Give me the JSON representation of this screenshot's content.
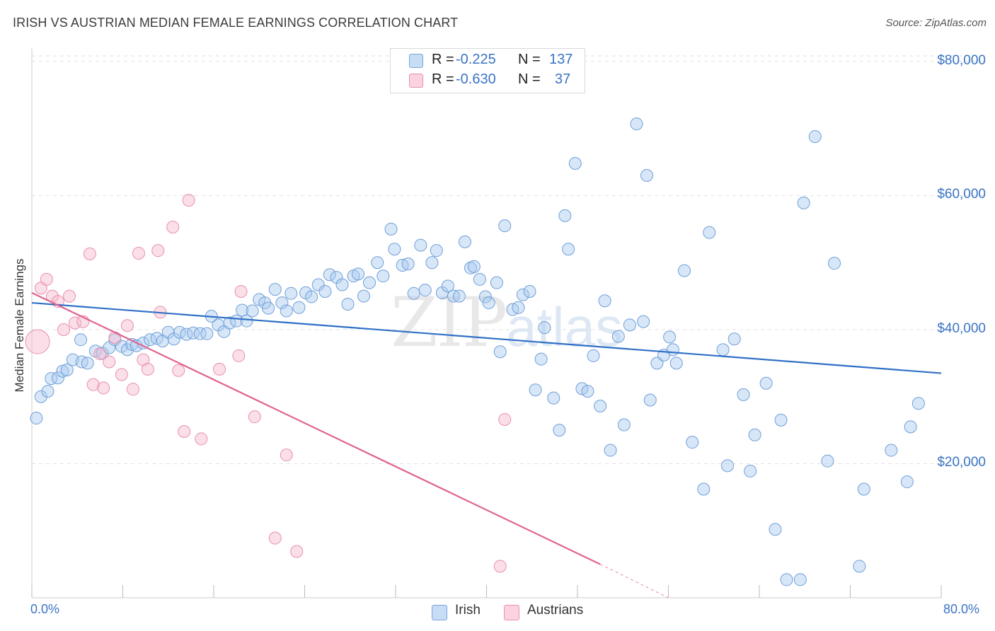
{
  "header": {
    "title": "IRISH VS AUSTRIAN MEDIAN FEMALE EARNINGS CORRELATION CHART",
    "source": "Source: ZipAtlas.com"
  },
  "watermark": {
    "zip": "ZIP",
    "atlas": "atlas"
  },
  "legend": {
    "rows": [
      {
        "r_label": "R =",
        "r_value": "-0.225",
        "n_label": "N =",
        "n_value": "137",
        "color": "#a9c9ef"
      },
      {
        "r_label": "R =",
        "r_value": "-0.630",
        "n_label": "N =",
        "n_value": "37",
        "color": "#f7b8cb"
      }
    ]
  },
  "bottom_legend": [
    {
      "label": "Irish",
      "color": "#a9c9ef"
    },
    {
      "label": "Austrians",
      "color": "#f7b8cb"
    }
  ],
  "chart_data": {
    "type": "scatter",
    "title": "IRISH VS AUSTRIAN MEDIAN FEMALE EARNINGS CORRELATION CHART",
    "xlabel": "",
    "ylabel": "Median Female Earnings",
    "xlim": [
      0,
      80
    ],
    "ylim": [
      0,
      82000
    ],
    "x_tick_labels": [
      "0.0%",
      "80.0%"
    ],
    "y_tick_labels": [
      "$20,000",
      "$40,000",
      "$60,000",
      "$80,000"
    ],
    "y_ticks": [
      20000,
      40000,
      60000,
      80000
    ],
    "grid": "horizontal dashed",
    "legend_placement": "top-center",
    "colors": {
      "irish": "#3a74c4",
      "austrians": "#e0648f"
    },
    "series": [
      {
        "name": "Irish",
        "color": "#3a74c4",
        "trend": {
          "x": [
            0,
            80
          ],
          "y": [
            44000,
            33500
          ]
        },
        "points": [
          [
            0.4,
            26800
          ],
          [
            0.8,
            30000
          ],
          [
            1.4,
            30800
          ],
          [
            1.7,
            32700
          ],
          [
            2.3,
            32800
          ],
          [
            2.7,
            33800
          ],
          [
            3.1,
            34000
          ],
          [
            3.6,
            35500
          ],
          [
            4.4,
            35200
          ],
          [
            4.9,
            35000
          ],
          [
            4.3,
            38500
          ],
          [
            5.6,
            36800
          ],
          [
            6.2,
            36500
          ],
          [
            6.8,
            37300
          ],
          [
            7.3,
            38500
          ],
          [
            7.9,
            37500
          ],
          [
            8.4,
            37000
          ],
          [
            8.8,
            37800
          ],
          [
            9.2,
            37600
          ],
          [
            9.8,
            38000
          ],
          [
            10.4,
            38500
          ],
          [
            11.0,
            38700
          ],
          [
            11.5,
            38300
          ],
          [
            12.0,
            39600
          ],
          [
            12.5,
            38600
          ],
          [
            13.0,
            39600
          ],
          [
            13.6,
            39300
          ],
          [
            14.2,
            39500
          ],
          [
            14.8,
            39400
          ],
          [
            15.4,
            39400
          ],
          [
            15.8,
            42000
          ],
          [
            16.4,
            40700
          ],
          [
            16.9,
            39700
          ],
          [
            17.4,
            41000
          ],
          [
            18.0,
            41300
          ],
          [
            18.5,
            42900
          ],
          [
            18.9,
            41300
          ],
          [
            19.4,
            42800
          ],
          [
            20.0,
            44500
          ],
          [
            20.5,
            44000
          ],
          [
            20.8,
            43200
          ],
          [
            21.4,
            46000
          ],
          [
            22.0,
            44000
          ],
          [
            22.4,
            42800
          ],
          [
            22.8,
            45400
          ],
          [
            23.5,
            43300
          ],
          [
            24.1,
            45500
          ],
          [
            24.6,
            44900
          ],
          [
            25.2,
            46700
          ],
          [
            25.8,
            45700
          ],
          [
            26.2,
            48200
          ],
          [
            26.8,
            47800
          ],
          [
            27.3,
            46700
          ],
          [
            27.8,
            43800
          ],
          [
            28.3,
            48000
          ],
          [
            28.7,
            48300
          ],
          [
            29.2,
            45000
          ],
          [
            29.7,
            47000
          ],
          [
            30.4,
            50000
          ],
          [
            30.9,
            48000
          ],
          [
            31.6,
            55000
          ],
          [
            31.9,
            52000
          ],
          [
            32.6,
            49600
          ],
          [
            33.1,
            49800
          ],
          [
            33.6,
            45400
          ],
          [
            34.2,
            52600
          ],
          [
            34.6,
            45900
          ],
          [
            35.2,
            50000
          ],
          [
            35.6,
            51800
          ],
          [
            36.1,
            45500
          ],
          [
            36.6,
            46500
          ],
          [
            37.1,
            45000
          ],
          [
            37.6,
            45000
          ],
          [
            38.1,
            53100
          ],
          [
            38.6,
            49200
          ],
          [
            38.9,
            49400
          ],
          [
            39.4,
            47500
          ],
          [
            39.9,
            44900
          ],
          [
            40.2,
            44000
          ],
          [
            40.9,
            47000
          ],
          [
            41.2,
            36700
          ],
          [
            41.6,
            55500
          ],
          [
            42.3,
            43000
          ],
          [
            42.8,
            43300
          ],
          [
            43.2,
            45200
          ],
          [
            43.8,
            45700
          ],
          [
            45.1,
            40300
          ],
          [
            44.8,
            35600
          ],
          [
            44.3,
            31000
          ],
          [
            45.9,
            29800
          ],
          [
            46.4,
            25000
          ],
          [
            46.9,
            57000
          ],
          [
            47.2,
            52000
          ],
          [
            47.8,
            64800
          ],
          [
            48.4,
            31200
          ],
          [
            48.9,
            30800
          ],
          [
            49.4,
            36100
          ],
          [
            50.0,
            28600
          ],
          [
            50.4,
            44300
          ],
          [
            50.9,
            22000
          ],
          [
            51.6,
            39000
          ],
          [
            52.1,
            25800
          ],
          [
            52.6,
            40700
          ],
          [
            53.2,
            70700
          ],
          [
            53.8,
            41200
          ],
          [
            54.1,
            63000
          ],
          [
            54.4,
            29500
          ],
          [
            55.0,
            35000
          ],
          [
            55.6,
            36200
          ],
          [
            56.1,
            38900
          ],
          [
            56.4,
            37000
          ],
          [
            56.7,
            35000
          ],
          [
            57.4,
            48800
          ],
          [
            58.1,
            23200
          ],
          [
            59.1,
            16200
          ],
          [
            59.6,
            54500
          ],
          [
            60.8,
            37000
          ],
          [
            61.2,
            19700
          ],
          [
            61.8,
            38600
          ],
          [
            62.6,
            30300
          ],
          [
            63.2,
            18900
          ],
          [
            63.6,
            24300
          ],
          [
            64.6,
            32000
          ],
          [
            65.4,
            10200
          ],
          [
            65.9,
            26500
          ],
          [
            66.4,
            2700
          ],
          [
            67.6,
            2700
          ],
          [
            67.9,
            58900
          ],
          [
            68.9,
            68800
          ],
          [
            70.0,
            20400
          ],
          [
            70.6,
            49900
          ],
          [
            72.8,
            4700
          ],
          [
            73.2,
            16200
          ],
          [
            75.6,
            22000
          ],
          [
            77.0,
            17300
          ],
          [
            77.3,
            25500
          ],
          [
            78.0,
            29000
          ]
        ]
      },
      {
        "name": "Austrians",
        "color": "#e0648f",
        "trend": {
          "x": [
            0,
            50
          ],
          "y": [
            45500,
            5000
          ],
          "dashed_to_x": 56,
          "dashed_to_y": 0
        },
        "points": [
          [
            0.5,
            38200
          ],
          [
            0.8,
            46200
          ],
          [
            1.3,
            47500
          ],
          [
            1.8,
            45000
          ],
          [
            2.3,
            44200
          ],
          [
            2.8,
            40000
          ],
          [
            3.3,
            45000
          ],
          [
            3.8,
            41000
          ],
          [
            4.5,
            41200
          ],
          [
            5.1,
            51300
          ],
          [
            5.4,
            31800
          ],
          [
            6.0,
            36400
          ],
          [
            6.3,
            31300
          ],
          [
            6.8,
            35200
          ],
          [
            7.3,
            38800
          ],
          [
            7.9,
            33300
          ],
          [
            8.4,
            40600
          ],
          [
            8.9,
            31100
          ],
          [
            9.4,
            51400
          ],
          [
            9.8,
            35500
          ],
          [
            10.2,
            34100
          ],
          [
            11.1,
            51800
          ],
          [
            11.3,
            42600
          ],
          [
            12.4,
            55300
          ],
          [
            12.9,
            33900
          ],
          [
            13.4,
            24800
          ],
          [
            13.8,
            59300
          ],
          [
            14.9,
            23700
          ],
          [
            16.5,
            34100
          ],
          [
            18.4,
            45700
          ],
          [
            18.2,
            36100
          ],
          [
            19.6,
            27000
          ],
          [
            21.4,
            8900
          ],
          [
            22.4,
            21300
          ],
          [
            23.3,
            6900
          ],
          [
            41.6,
            26600
          ],
          [
            41.2,
            4700
          ]
        ]
      }
    ]
  }
}
